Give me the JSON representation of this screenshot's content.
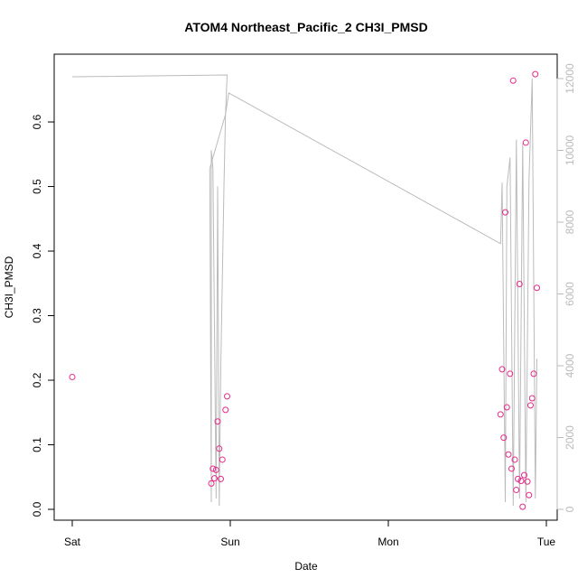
{
  "chart_data": {
    "type": "scatter",
    "title": "ATOM4 Northeast_Pacific_2 CH3I_PMSD",
    "xlabel": "Date",
    "ylabel": "CH3I_PMSD",
    "x_ticks": [
      "Sat",
      "Sun",
      "Mon",
      "Tue"
    ],
    "x_range_days": [
      0,
      3
    ],
    "ylim": [
      0,
      0.67
    ],
    "y_ticks": [
      0.0,
      0.1,
      0.2,
      0.3,
      0.4,
      0.5,
      0.6
    ],
    "y2_ticks": [
      0,
      2000,
      4000,
      6000,
      8000,
      10000,
      12000
    ],
    "y2lim": [
      0,
      12000
    ],
    "colors": {
      "points": "#e7298a",
      "line": "#bbbbbb",
      "axis": "#000000",
      "right_axis": "#bbbbbb"
    },
    "series": [
      {
        "kind": "points",
        "points": [
          [
            0.0,
            0.205
          ],
          [
            0.88,
            0.04
          ],
          [
            0.89,
            0.063
          ],
          [
            0.9,
            0.048
          ],
          [
            0.91,
            0.061
          ],
          [
            0.92,
            0.136
          ],
          [
            0.93,
            0.094
          ],
          [
            0.94,
            0.047
          ],
          [
            0.95,
            0.077
          ],
          [
            0.97,
            0.154
          ],
          [
            0.98,
            0.175
          ],
          [
            2.71,
            0.147
          ],
          [
            2.72,
            0.217
          ],
          [
            2.73,
            0.111
          ],
          [
            2.74,
            0.46
          ],
          [
            2.75,
            0.158
          ],
          [
            2.76,
            0.085
          ],
          [
            2.77,
            0.21
          ],
          [
            2.78,
            0.063
          ],
          [
            2.79,
            0.664
          ],
          [
            2.8,
            0.077
          ],
          [
            2.81,
            0.03
          ],
          [
            2.82,
            0.047
          ],
          [
            2.83,
            0.349
          ],
          [
            2.84,
            0.044
          ],
          [
            2.85,
            0.004
          ],
          [
            2.86,
            0.053
          ],
          [
            2.87,
            0.568
          ],
          [
            2.88,
            0.043
          ],
          [
            2.89,
            0.022
          ],
          [
            2.9,
            0.161
          ],
          [
            2.91,
            0.172
          ],
          [
            2.92,
            0.21
          ],
          [
            2.93,
            0.674
          ],
          [
            2.94,
            0.343
          ]
        ]
      },
      {
        "kind": "line",
        "axis": "right",
        "points": [
          [
            0.0,
            12050
          ],
          [
            0.98,
            12100
          ],
          [
            0.97,
            11000
          ],
          [
            0.96,
            9000
          ],
          [
            0.94,
            4000
          ],
          [
            0.93,
            100
          ],
          [
            0.92,
            9000
          ],
          [
            0.91,
            300
          ],
          [
            0.89,
            9500
          ],
          [
            0.88,
            10000
          ],
          [
            0.88,
            200
          ],
          [
            0.87,
            9500
          ],
          [
            0.97,
            11000
          ],
          [
            0.99,
            11600
          ],
          [
            2.71,
            7400
          ],
          [
            2.72,
            9100
          ],
          [
            2.74,
            200
          ],
          [
            2.75,
            9000
          ],
          [
            2.77,
            9800
          ],
          [
            2.79,
            100
          ],
          [
            2.81,
            10300
          ],
          [
            2.83,
            300
          ],
          [
            2.85,
            10200
          ],
          [
            2.87,
            200
          ],
          [
            2.89,
            9200
          ],
          [
            2.91,
            12000
          ],
          [
            2.93,
            300
          ],
          [
            2.94,
            4200
          ]
        ]
      }
    ]
  }
}
